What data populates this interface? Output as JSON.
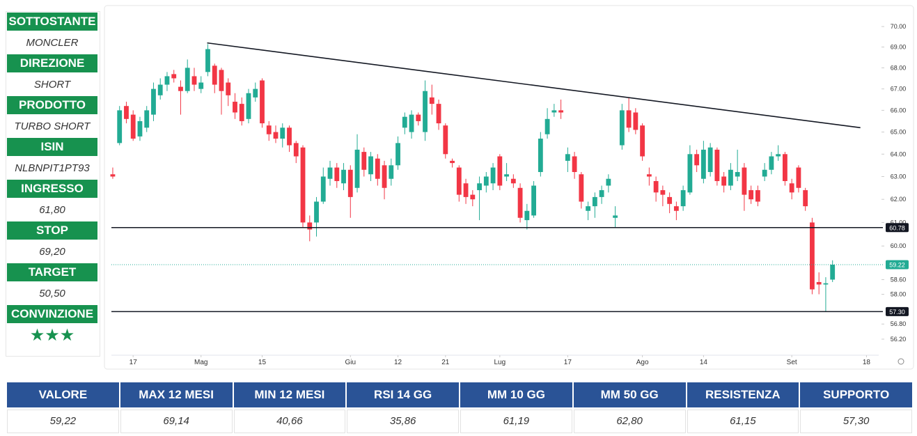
{
  "sidebar": [
    {
      "label": "SOTTOSTANTE",
      "value": "MONCLER"
    },
    {
      "label": "DIREZIONE",
      "value": "SHORT"
    },
    {
      "label": "PRODOTTO",
      "value": "TURBO SHORT"
    },
    {
      "label": "ISIN",
      "value": "NLBNPIT1PT93"
    },
    {
      "label": "INGRESSO",
      "value": "61,80"
    },
    {
      "label": "STOP",
      "value": "69,20"
    },
    {
      "label": "TARGET",
      "value": "50,50"
    },
    {
      "label": "CONVINZIONE",
      "value": "★★★"
    }
  ],
  "chart_data": {
    "type": "candlestick",
    "log_scale": true,
    "up_color": "#22ab94",
    "down_color": "#f23645",
    "ylim": [
      55.57,
      70.9
    ],
    "yticks": [
      {
        "value": 70,
        "label": "70.00"
      },
      {
        "value": 69,
        "label": "69.00"
      },
      {
        "value": 68,
        "label": "68.00"
      },
      {
        "value": 67,
        "label": "67.00"
      },
      {
        "value": 66,
        "label": "66.00"
      },
      {
        "value": 65,
        "label": "65.00"
      },
      {
        "value": 64,
        "label": "64.00"
      },
      {
        "value": 63,
        "label": "63.00"
      },
      {
        "value": 62,
        "label": "62.00"
      },
      {
        "value": 61,
        "label": "61.00"
      },
      {
        "value": 60,
        "label": "60.00"
      },
      {
        "value": 58.6,
        "label": "58.60"
      },
      {
        "value": 58,
        "label": "58.00"
      },
      {
        "value": 56.8,
        "label": "56.80"
      },
      {
        "value": 56.2,
        "label": "56.20"
      }
    ],
    "xlim": [
      -0.2,
      112.8
    ],
    "xticks": [
      {
        "value": 3,
        "label": "17"
      },
      {
        "value": 13,
        "label": "Mag"
      },
      {
        "value": 22,
        "label": "15"
      },
      {
        "value": 35,
        "label": "Giu"
      },
      {
        "value": 42,
        "label": "12"
      },
      {
        "value": 49,
        "label": "21"
      },
      {
        "value": 57,
        "label": "Lug"
      },
      {
        "value": 67,
        "label": "17"
      },
      {
        "value": 78,
        "label": "Ago"
      },
      {
        "value": 87,
        "label": "14"
      },
      {
        "value": 100,
        "label": "Set"
      },
      {
        "value": 111,
        "label": "18"
      }
    ],
    "open": [
      63.1,
      64.5,
      66.2,
      65.8,
      64.8,
      65.2,
      65.8,
      66.7,
      67.2,
      67.7,
      67.1,
      66.9,
      67.6,
      67.0,
      67.8,
      68.1,
      67.9,
      67.3,
      66.4,
      66.3,
      65.6,
      66.6,
      67.4,
      65.3,
      65.0,
      64.7,
      65.2,
      64.5,
      64.3,
      61.0,
      61.0,
      61.9,
      62.9,
      63.4,
      62.7,
      63.3,
      62.5,
      64.1,
      63.1,
      63.8,
      63.5,
      62.9,
      63.5,
      65.2,
      65.0,
      65.8,
      65.0,
      66.6,
      66.3,
      65.3,
      63.7,
      63.4,
      62.7,
      62.2,
      62.4,
      62.6,
      62.7,
      63.9,
      63.0,
      62.9,
      62.5,
      61.1,
      61.3,
      63.2,
      64.9,
      65.9,
      66.0,
      63.7,
      63.9,
      63.1,
      61.5,
      61.7,
      62.1,
      62.6,
      61.2,
      64.4,
      66.0,
      65.9,
      65.3,
      63.1,
      62.8,
      62.4,
      62.1,
      61.7,
      61.7,
      62.3,
      64.0,
      62.9,
      63.2,
      64.2,
      63.0,
      62.6,
      63.0,
      63.4,
      62.4,
      62.4,
      63.0,
      63.3,
      63.9,
      64.0,
      62.7,
      63.4,
      62.4,
      61.0,
      58.5,
      58.4,
      58.6
    ],
    "high": [
      63.4,
      66.2,
      66.4,
      66.0,
      65.7,
      66.2,
      67.3,
      67.5,
      67.8,
      67.9,
      67.4,
      68.4,
      68.0,
      67.6,
      69.14,
      68.2,
      68.0,
      67.5,
      66.8,
      66.6,
      67.0,
      67.3,
      67.5,
      65.5,
      65.3,
      65.4,
      65.3,
      64.6,
      64.4,
      61.3,
      62.1,
      63.4,
      63.7,
      63.6,
      63.6,
      63.5,
      64.9,
      64.3,
      64.1,
      64.0,
      63.7,
      63.8,
      64.8,
      65.9,
      66.0,
      65.9,
      67.4,
      67.2,
      66.5,
      65.4,
      63.8,
      63.5,
      62.9,
      62.4,
      63.0,
      63.2,
      63.6,
      64.0,
      63.6,
      63.1,
      62.7,
      61.8,
      62.8,
      65.0,
      66.1,
      66.3,
      66.5,
      64.3,
      64.1,
      63.2,
      61.9,
      62.3,
      62.6,
      63.1,
      61.7,
      66.3,
      66.6,
      66.1,
      65.4,
      63.4,
      63.0,
      62.6,
      62.3,
      61.9,
      62.6,
      64.4,
      64.2,
      64.6,
      64.5,
      64.3,
      63.2,
      63.6,
      64.2,
      63.6,
      62.6,
      62.6,
      63.6,
      64.1,
      64.4,
      64.1,
      62.9,
      63.5,
      62.5,
      61.2,
      58.9,
      58.7,
      59.4
    ],
    "low": [
      62.9,
      64.4,
      65.4,
      64.6,
      64.6,
      65.0,
      65.5,
      66.5,
      66.9,
      67.3,
      65.8,
      66.8,
      66.9,
      66.8,
      67.6,
      66.8,
      65.8,
      66.2,
      65.6,
      65.3,
      65.4,
      66.4,
      65.2,
      64.6,
      64.5,
      64.3,
      64.1,
      63.6,
      60.8,
      60.2,
      60.4,
      61.8,
      62.6,
      62.5,
      62.4,
      61.2,
      62.3,
      63.0,
      62.8,
      62.6,
      62.0,
      62.6,
      63.3,
      64.9,
      64.7,
      65.3,
      64.6,
      65.8,
      65.1,
      63.8,
      63.4,
      61.9,
      61.8,
      61.7,
      61.1,
      62.3,
      62.4,
      62.4,
      62.8,
      62.5,
      61.0,
      60.7,
      61.2,
      63.0,
      64.7,
      65.7,
      65.6,
      63.2,
      62.9,
      61.6,
      61.1,
      61.2,
      61.8,
      62.3,
      60.8,
      64.2,
      65.0,
      64.9,
      63.7,
      62.6,
      61.9,
      61.7,
      61.4,
      61.1,
      61.5,
      62.2,
      63.2,
      62.7,
      63.0,
      62.6,
      62.3,
      62.4,
      62.8,
      61.5,
      61.8,
      61.7,
      62.8,
      63.1,
      63.7,
      62.6,
      62.0,
      62.3,
      61.5,
      58.0,
      58.0,
      57.3,
      58.5
    ],
    "close": [
      63.0,
      66.0,
      65.6,
      64.7,
      65.5,
      66.0,
      67.0,
      67.2,
      67.6,
      67.5,
      66.9,
      68.0,
      67.2,
      67.3,
      68.9,
      67.2,
      66.9,
      66.7,
      65.9,
      65.5,
      66.8,
      67.0,
      65.4,
      64.9,
      64.7,
      65.2,
      64.4,
      63.9,
      61.0,
      60.7,
      61.9,
      63.0,
      63.4,
      62.8,
      63.3,
      62.1,
      64.2,
      63.3,
      63.9,
      62.9,
      62.5,
      63.5,
      64.5,
      65.7,
      65.8,
      65.5,
      66.9,
      66.3,
      65.4,
      64.0,
      63.6,
      62.2,
      62.1,
      62.0,
      62.7,
      63.0,
      63.4,
      62.6,
      63.1,
      62.7,
      61.2,
      61.5,
      62.6,
      64.7,
      65.6,
      66.0,
      65.9,
      64.0,
      63.2,
      61.9,
      61.7,
      62.1,
      62.4,
      62.9,
      61.3,
      66.0,
      65.2,
      65.1,
      63.9,
      63.0,
      62.3,
      62.2,
      61.8,
      61.5,
      62.4,
      64.0,
      63.5,
      64.2,
      64.3,
      62.8,
      62.6,
      63.3,
      63.2,
      62.2,
      62.0,
      61.9,
      63.3,
      63.9,
      64.0,
      62.8,
      62.3,
      62.5,
      61.7,
      58.2,
      58.4,
      58.45,
      59.22
    ],
    "levels": [
      {
        "value": 60.78,
        "label": "60.78",
        "color": "#131722",
        "style": "solid"
      },
      {
        "value": 59.22,
        "label": "59.22",
        "color": "#22ab94",
        "style": "dotted"
      },
      {
        "value": 57.3,
        "label": "57.30",
        "color": "#131722",
        "style": "solid"
      }
    ],
    "trendline": {
      "x": [
        13.9,
        110.1
      ],
      "y": [
        69.2,
        65.2
      ],
      "color": "#131722"
    }
  },
  "table": {
    "headers": [
      "VALORE",
      "MAX 12 MESI",
      "MIN 12 MESI",
      "RSI 14 GG",
      "MM 10 GG",
      "MM 50 GG",
      "RESISTENZA",
      "SUPPORTO"
    ],
    "values": [
      "59,22",
      "69,14",
      "40,66",
      "35,86",
      "61,19",
      "62,80",
      "61,15",
      "57,30"
    ]
  }
}
